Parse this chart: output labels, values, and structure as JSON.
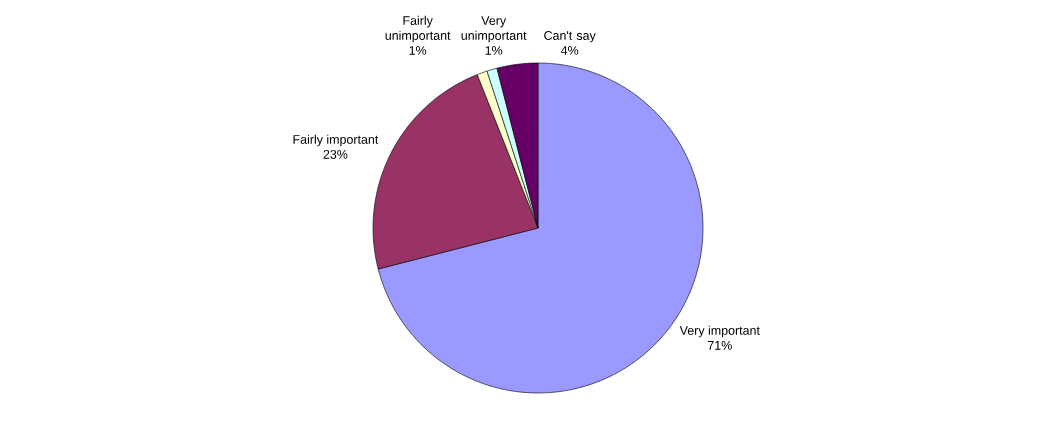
{
  "chart_data": {
    "type": "pie",
    "categories": [
      "Very important",
      "Fairly important",
      "Fairly unimportant",
      "Very unimportant",
      "Can't say"
    ],
    "values": [
      71,
      23,
      1,
      1,
      4
    ],
    "value_labels": [
      "71%",
      "23%",
      "1%",
      "1%",
      "4%"
    ],
    "colors": [
      "#9999ff",
      "#993366",
      "#ffffcc",
      "#ccffff",
      "#660066"
    ]
  }
}
